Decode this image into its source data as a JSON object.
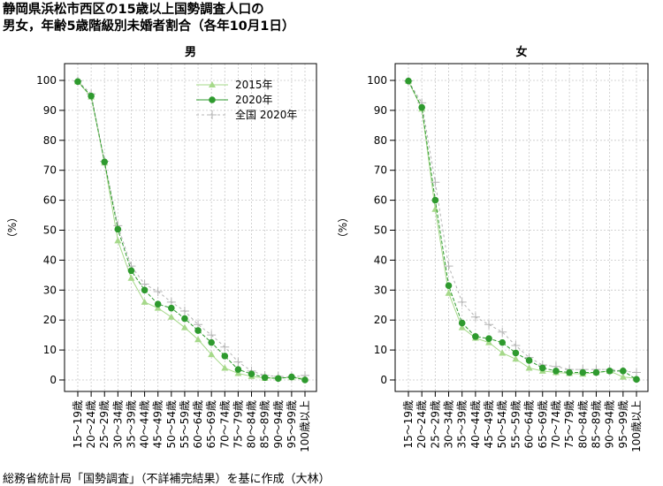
{
  "title_lines": [
    "静岡県浜松市西区の15歳以上国勢調査人口の",
    "男女，年齢5歳階級別未婚者割合（各年10月1日）"
  ],
  "source": "総務省統計局「国勢調査」（不詳補完結果）を基に作成（大林）",
  "colors": {
    "s2015": "#a6d98a",
    "s2020": "#2e9a2e",
    "national": "#b4b4b4"
  },
  "chart_data": [
    {
      "type": "line",
      "title": "男",
      "ylabel": "（%）",
      "ylim": [
        0,
        100
      ],
      "yticks": [
        0,
        10,
        20,
        30,
        40,
        50,
        60,
        70,
        80,
        90,
        100
      ],
      "grid": true,
      "legend": "top-right",
      "categories": [
        "15～19歳",
        "20～24歳",
        "25～29歳",
        "30～34歳",
        "35～39歳",
        "40～44歳",
        "45～49歳",
        "50～54歳",
        "55～59歳",
        "60～64歳",
        "65～69歳",
        "70～74歳",
        "75～79歳",
        "80～84歳",
        "85～89歳",
        "90～94歳",
        "95～99歳",
        "100歳以上"
      ],
      "series": [
        {
          "name": "2015年",
          "color": "#a6d98a",
          "marker": "triangle",
          "values": [
            99.6,
            94.5,
            72.5,
            46.5,
            34.0,
            26.0,
            24.0,
            21.0,
            17.5,
            13.5,
            8.5,
            4.0,
            2.2,
            1.2,
            0.6,
            0.7,
            0.8,
            0.5
          ]
        },
        {
          "name": "2020年",
          "color": "#2e9a2e",
          "marker": "circle",
          "values": [
            99.6,
            94.8,
            72.8,
            50.3,
            36.5,
            30.0,
            25.3,
            24.0,
            20.5,
            16.5,
            12.5,
            8.0,
            3.5,
            2.0,
            0.8,
            0.5,
            1.0,
            0.0
          ]
        },
        {
          "name": "全国 2020年",
          "color": "#b4b4b4",
          "marker": "plus",
          "values": [
            99.8,
            95.5,
            73.0,
            51.5,
            38.0,
            32.0,
            29.5,
            26.0,
            23.0,
            18.5,
            15.0,
            11.0,
            6.0,
            3.0,
            1.5,
            1.2,
            1.0,
            1.5
          ]
        }
      ]
    },
    {
      "type": "line",
      "title": "女",
      "ylabel": "（%）",
      "ylim": [
        0,
        100
      ],
      "yticks": [
        0,
        10,
        20,
        30,
        40,
        50,
        60,
        70,
        80,
        90,
        100
      ],
      "grid": true,
      "categories": [
        "15～19歳",
        "20～24歳",
        "25～29歳",
        "30～34歳",
        "35～39歳",
        "40～44歳",
        "45～49歳",
        "50～54歳",
        "55～59歳",
        "60～64歳",
        "65～69歳",
        "70～74歳",
        "75～79歳",
        "80～84歳",
        "85～89歳",
        "90～94歳",
        "95～99歳",
        "100歳以上"
      ],
      "series": [
        {
          "name": "2015年",
          "color": "#a6d98a",
          "marker": "triangle",
          "values": [
            99.8,
            90.5,
            57.0,
            29.0,
            17.5,
            14.0,
            12.5,
            9.0,
            7.0,
            4.0,
            3.0,
            2.5,
            2.2,
            2.0,
            2.5,
            3.0,
            1.0,
            0.5
          ]
        },
        {
          "name": "2020年",
          "color": "#2e9a2e",
          "marker": "circle",
          "values": [
            99.8,
            91.0,
            60.0,
            31.5,
            19.0,
            14.5,
            13.8,
            12.5,
            9.0,
            6.5,
            4.0,
            3.0,
            2.5,
            2.5,
            2.5,
            3.0,
            3.0,
            0.2
          ]
        },
        {
          "name": "全国 2020年",
          "color": "#b4b4b4",
          "marker": "plus",
          "values": [
            99.8,
            92.5,
            66.0,
            38.0,
            26.0,
            21.0,
            18.5,
            16.0,
            11.5,
            7.5,
            5.0,
            4.5,
            3.5,
            3.5,
            3.5,
            3.5,
            3.0,
            2.5
          ]
        }
      ]
    }
  ]
}
